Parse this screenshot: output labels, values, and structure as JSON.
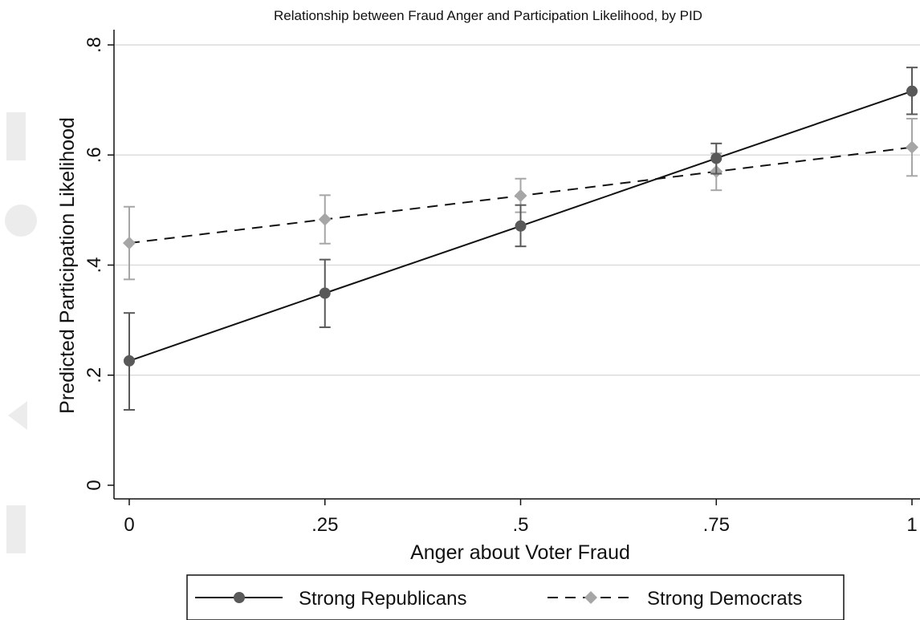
{
  "chart_data": {
    "type": "line",
    "title": "Relationship between Fraud Anger and Participation Likelihood, by PID",
    "xlabel": "Anger about Voter Fraud",
    "ylabel": "Predicted Participation Likelihood",
    "x": [
      0,
      0.25,
      0.5,
      0.75,
      1
    ],
    "x_tick_values": [
      0,
      0.25,
      0.5,
      0.75,
      1
    ],
    "x_tick_labels": [
      "0",
      ".25",
      ".5",
      ".75",
      "1"
    ],
    "y_tick_values": [
      0,
      0.2,
      0.4,
      0.6,
      0.8
    ],
    "y_tick_labels": [
      "0",
      ".2",
      ".4",
      ".6",
      ".8"
    ],
    "xlim": [
      0,
      1
    ],
    "ylim": [
      0,
      0.8
    ],
    "grid": "horizontal",
    "legend_position": "bottom",
    "series": [
      {
        "name": "Strong Republicans",
        "values": [
          0.226,
          0.349,
          0.471,
          0.594,
          0.716
        ],
        "ci_lower": [
          0.137,
          0.287,
          0.434,
          0.566,
          0.674
        ],
        "ci_upper": [
          0.313,
          0.41,
          0.509,
          0.621,
          0.759
        ],
        "color": "#595959",
        "line": "solid",
        "marker": "circle"
      },
      {
        "name": "Strong Democrats",
        "values": [
          0.44,
          0.483,
          0.526,
          0.57,
          0.614
        ],
        "ci_lower": [
          0.374,
          0.439,
          0.496,
          0.536,
          0.562
        ],
        "ci_upper": [
          0.506,
          0.527,
          0.557,
          0.603,
          0.666
        ],
        "color": "#a6a6a6",
        "line": "dashed",
        "marker": "diamond"
      }
    ]
  }
}
